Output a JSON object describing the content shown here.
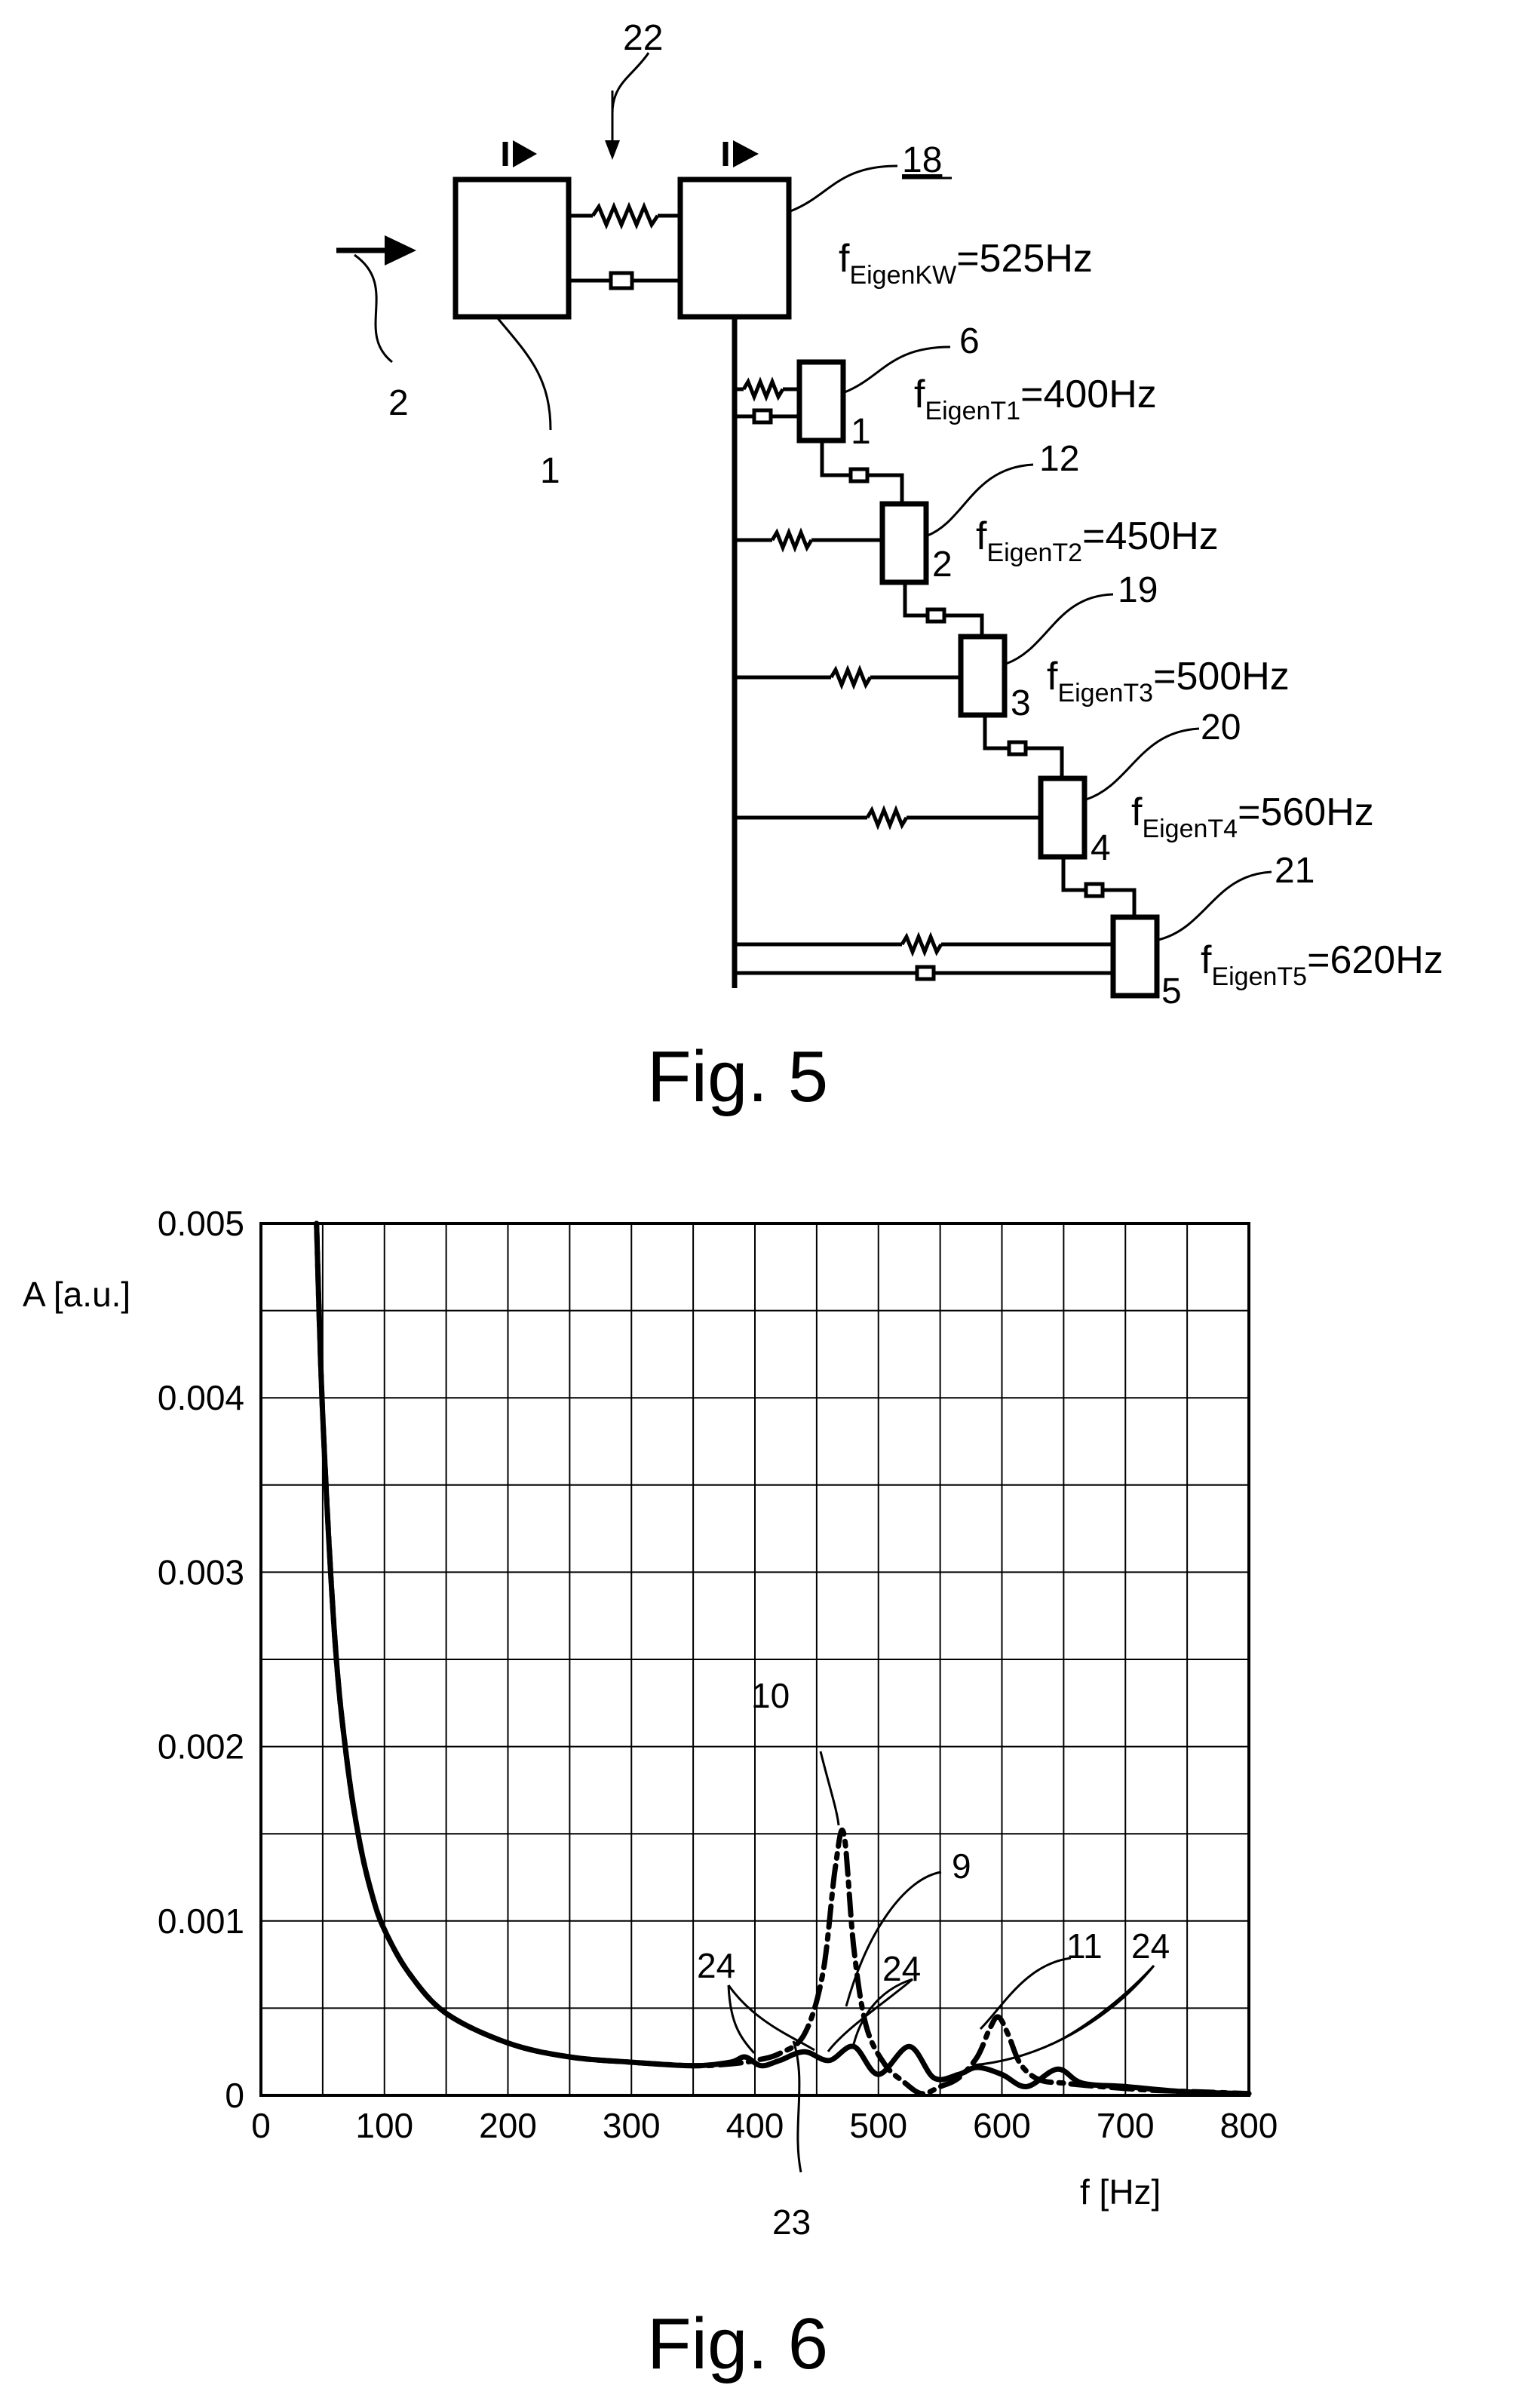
{
  "fig5": {
    "caption": "Fig. 5",
    "ref_labels": {
      "input": "2",
      "block_left": "1",
      "coupling": "22",
      "block_main": "18",
      "t1": "6",
      "t2": "12",
      "t3": "19",
      "t4": "20",
      "t5": "21"
    },
    "box_numbers": [
      "1",
      "2",
      "3",
      "4",
      "5"
    ],
    "freq_labels": [
      {
        "prefix": "f",
        "sub": "EigenKW",
        "value": "=525Hz"
      },
      {
        "prefix": "f",
        "sub": "EigenT1",
        "value": "=400Hz"
      },
      {
        "prefix": "f",
        "sub": "EigenT2",
        "value": "=450Hz"
      },
      {
        "prefix": "f",
        "sub": "EigenT3",
        "value": "=500Hz"
      },
      {
        "prefix": "f",
        "sub": "EigenT4",
        "value": "=560Hz"
      },
      {
        "prefix": "f",
        "sub": "EigenT5",
        "value": "=620Hz"
      }
    ]
  },
  "fig6": {
    "caption": "Fig. 6",
    "annotations": {
      "c10": "10",
      "c9": "9",
      "c11": "11",
      "c23": "23",
      "c24a": "24",
      "c24b": "24",
      "c24c": "24"
    }
  },
  "chart_data": {
    "type": "line",
    "xlabel": "f [Hz]",
    "ylabel": "A [a.u.]",
    "xlim": [
      0,
      800
    ],
    "ylim": [
      0,
      0.005
    ],
    "x_ticks": [
      "0",
      "100",
      "200",
      "300",
      "400",
      "500",
      "600",
      "700",
      "800"
    ],
    "y_ticks": [
      "0",
      "0.001",
      "0.002",
      "0.003",
      "0.004",
      "0.005"
    ],
    "grid": true,
    "series": [
      {
        "style": "solid",
        "x": [
          45,
          50,
          60,
          70,
          80,
          90,
          100,
          120,
          150,
          200,
          250,
          300,
          350,
          380,
          392,
          405,
          420,
          440,
          460,
          480,
          500,
          525,
          545,
          565,
          580,
          600,
          620,
          645,
          665,
          700,
          750,
          800
        ],
        "y": [
          0.005,
          0.0039,
          0.0026,
          0.0019,
          0.00145,
          0.00115,
          0.00095,
          0.0007,
          0.00047,
          0.0003,
          0.00022,
          0.00019,
          0.00017,
          0.00019,
          0.00022,
          0.00017,
          0.0002,
          0.00025,
          0.0002,
          0.00028,
          0.00012,
          0.00028,
          0.0001,
          0.00012,
          0.00016,
          0.00012,
          5e-05,
          0.00015,
          7e-05,
          5e-05,
          2e-05,
          1e-05
        ]
      },
      {
        "style": "dash-dot",
        "x": [
          45,
          50,
          60,
          70,
          80,
          90,
          100,
          120,
          150,
          200,
          250,
          300,
          350,
          380,
          400,
          420,
          440,
          455,
          465,
          472,
          480,
          490,
          505,
          520,
          535,
          550,
          565,
          580,
          590,
          597,
          605,
          615,
          630,
          650,
          680,
          720,
          760,
          800
        ],
        "y": [
          0.005,
          0.0039,
          0.0026,
          0.0019,
          0.00145,
          0.00115,
          0.00095,
          0.0007,
          0.00047,
          0.0003,
          0.00022,
          0.00019,
          0.00017,
          0.00018,
          0.0002,
          0.00024,
          0.00035,
          0.0007,
          0.0013,
          0.0015,
          0.00085,
          0.0004,
          0.00018,
          8e-05,
          1e-05,
          5e-05,
          0.0001,
          0.00022,
          0.00038,
          0.00045,
          0.00035,
          0.00018,
          9e-05,
          7e-05,
          5e-05,
          3e-05,
          2e-05,
          1e-05
        ]
      }
    ]
  }
}
